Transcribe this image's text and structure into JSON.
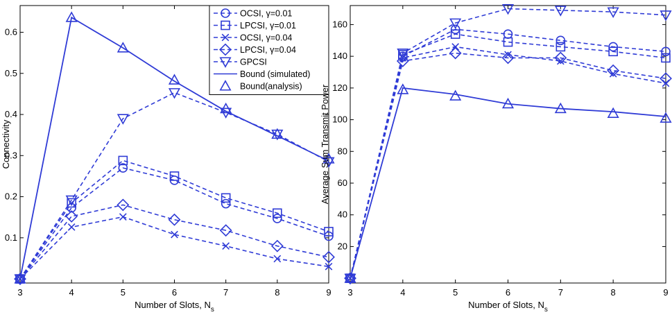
{
  "colors": {
    "series": "#2f3bd6",
    "axis": "#000000",
    "background": "#ffffff"
  },
  "chart_data": [
    {
      "type": "line",
      "xlabel": "Number of Slots, N",
      "xlabel_sub": "s",
      "ylabel": "Connectivity",
      "xlim": [
        3,
        9
      ],
      "ylim": [
        -0.01,
        0.665
      ],
      "xticks": [
        3,
        4,
        5,
        6,
        7,
        8,
        9
      ],
      "yticks": [
        0.1,
        0.2,
        0.3,
        0.4,
        0.5,
        0.6
      ],
      "ytick_labels": [
        "0.1",
        "0.2",
        "0.3",
        "0.4",
        "0.5",
        "0.6"
      ],
      "legend": "top-right",
      "x": [
        3,
        4,
        5,
        6,
        7,
        8,
        9
      ],
      "series": [
        {
          "name": "OCSI, γ=0.01",
          "marker": "circle",
          "style": "dashed",
          "values": [
            0.0,
            0.173,
            0.27,
            0.24,
            0.183,
            0.147,
            0.104
          ]
        },
        {
          "name": "LPCSI, γ=0.01",
          "marker": "square",
          "style": "dashed",
          "values": [
            0.0,
            0.185,
            0.288,
            0.25,
            0.197,
            0.16,
            0.115
          ]
        },
        {
          "name": "OCSI, γ=0.04",
          "marker": "x",
          "style": "dashed",
          "values": [
            0.0,
            0.126,
            0.151,
            0.108,
            0.08,
            0.049,
            0.03
          ]
        },
        {
          "name": "LPCSI, γ=0.04",
          "marker": "diamond",
          "style": "dashed",
          "values": [
            0.0,
            0.152,
            0.18,
            0.144,
            0.118,
            0.08,
            0.053
          ]
        },
        {
          "name": "GPCSI",
          "marker": "triangle-down",
          "style": "dashed",
          "values": [
            0.0,
            0.192,
            0.39,
            0.453,
            0.405,
            0.352,
            0.285
          ]
        },
        {
          "name": "Bound (simulated)",
          "marker": "none",
          "style": "solid",
          "values": [
            0.0,
            0.636,
            0.562,
            0.481,
            0.408,
            0.348,
            0.287
          ]
        },
        {
          "name": "Bound(analysis)",
          "marker": "triangle-up",
          "style": "none",
          "values": [
            0.0,
            0.636,
            0.562,
            0.484,
            0.414,
            0.352,
            0.292
          ]
        }
      ]
    },
    {
      "type": "line",
      "xlabel": "Number of Slots, N",
      "xlabel_sub": "s",
      "ylabel": "Average Sum Transmit Power",
      "xlim": [
        3,
        9
      ],
      "ylim": [
        -3,
        172
      ],
      "xticks": [
        3,
        4,
        5,
        6,
        7,
        8,
        9
      ],
      "yticks": [
        20,
        40,
        60,
        80,
        100,
        120,
        140,
        160
      ],
      "ytick_labels": [
        "20",
        "40",
        "60",
        "80",
        "100",
        "120",
        "140",
        "160"
      ],
      "legend": "none",
      "x": [
        3,
        4,
        5,
        6,
        7,
        8,
        9
      ],
      "series": [
        {
          "name": "OCSI, γ=0.01",
          "marker": "circle",
          "style": "dashed",
          "values": [
            0,
            140,
            157,
            154,
            150,
            146,
            143
          ]
        },
        {
          "name": "LPCSI, γ=0.01",
          "marker": "square",
          "style": "dashed",
          "values": [
            0,
            141,
            154,
            149,
            146,
            143,
            139
          ]
        },
        {
          "name": "OCSI, γ=0.04",
          "marker": "x",
          "style": "dashed",
          "values": [
            0,
            139,
            146,
            141,
            137,
            129,
            123
          ]
        },
        {
          "name": "LPCSI, γ=0.04",
          "marker": "diamond",
          "style": "dashed",
          "values": [
            0,
            137,
            142,
            139,
            139,
            131,
            126
          ]
        },
        {
          "name": "GPCSI",
          "marker": "triangle-down",
          "style": "dashed",
          "values": [
            0,
            142,
            161,
            170,
            169,
            168,
            166
          ]
        },
        {
          "name": "Bound (simulated)",
          "marker": "none",
          "style": "solid",
          "values": [
            0,
            120,
            116,
            110,
            107,
            105,
            102
          ]
        },
        {
          "name": "Bound(analysis)",
          "marker": "triangle-up",
          "style": "none",
          "values": [
            0,
            119,
            115,
            110,
            107,
            104,
            101
          ]
        }
      ]
    }
  ]
}
